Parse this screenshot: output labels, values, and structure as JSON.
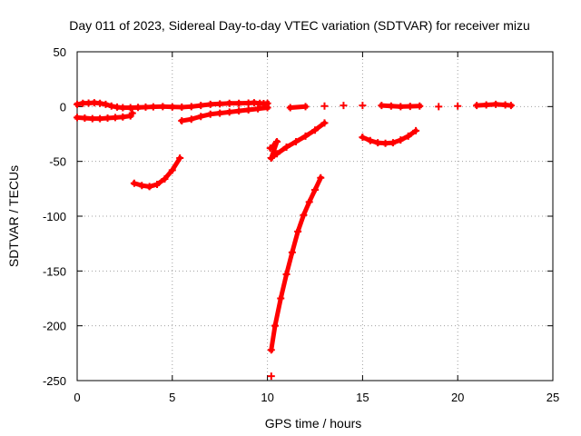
{
  "chart_data": {
    "type": "scatter",
    "title": "Day 011 of 2023, Sidereal Day-to-day VTEC variation (SDTVAR) for receiver mizu",
    "xlabel": "GPS time / hours",
    "ylabel": "SDTVAR / TECUs",
    "xlim": [
      0,
      25
    ],
    "ylim": [
      -250,
      50
    ],
    "xticks": [
      0,
      5,
      10,
      15,
      20,
      25
    ],
    "yticks": [
      -250,
      -200,
      -150,
      -100,
      -50,
      0,
      50
    ],
    "grid": true,
    "marker_color": "#ff0000",
    "series": [
      {
        "points": [
          [
            0.0,
            2.0
          ],
          [
            0.3,
            3.0
          ],
          [
            0.6,
            3.2
          ],
          [
            0.9,
            3.5
          ],
          [
            1.2,
            3.0
          ],
          [
            1.5,
            2.0
          ],
          [
            1.8,
            0.5
          ],
          [
            2.1,
            -0.5
          ],
          [
            2.4,
            -1.0
          ],
          [
            2.8,
            -1.0
          ],
          [
            3.2,
            -0.8
          ],
          [
            3.6,
            -0.5
          ],
          [
            4.0,
            -0.2
          ],
          [
            4.5,
            0.0
          ],
          [
            5.0,
            -0.3
          ],
          [
            5.5,
            -0.5
          ],
          [
            6.0,
            0.0
          ],
          [
            6.5,
            1.0
          ],
          [
            7.0,
            2.0
          ],
          [
            7.5,
            2.5
          ],
          [
            8.0,
            3.0
          ],
          [
            8.5,
            3.0
          ],
          [
            9.0,
            3.2
          ],
          [
            9.3,
            3.5
          ],
          [
            9.6,
            3.0
          ],
          [
            9.8,
            2.8
          ],
          [
            10.0,
            3.0
          ]
        ]
      },
      {
        "points": [
          [
            0.0,
            -10.0
          ],
          [
            0.4,
            -10.5
          ],
          [
            0.8,
            -11.0
          ],
          [
            1.2,
            -11.0
          ],
          [
            1.6,
            -10.5
          ],
          [
            2.0,
            -10.0
          ],
          [
            2.4,
            -9.5
          ],
          [
            2.8,
            -8.5
          ],
          [
            2.9,
            -6.0
          ],
          [
            5.5,
            -13.0
          ],
          [
            6.0,
            -11.5
          ],
          [
            6.5,
            -9.0
          ],
          [
            7.0,
            -7.0
          ],
          [
            7.5,
            -6.0
          ],
          [
            8.0,
            -5.0
          ],
          [
            8.5,
            -4.0
          ],
          [
            9.0,
            -3.0
          ],
          [
            9.5,
            -2.0
          ],
          [
            10.0,
            -1.0
          ]
        ]
      },
      {
        "points": [
          [
            3.0,
            -70.0
          ],
          [
            3.4,
            -72.0
          ],
          [
            3.8,
            -73.0
          ],
          [
            4.2,
            -71.0
          ],
          [
            4.6,
            -66.0
          ],
          [
            5.0,
            -58.0
          ],
          [
            5.4,
            -47.0
          ]
        ]
      },
      {
        "points": [
          [
            10.15,
            -38.0
          ],
          [
            10.3,
            -36.0
          ],
          [
            10.5,
            -32.0
          ],
          [
            10.2,
            -47.0
          ],
          [
            10.5,
            -43.0
          ],
          [
            11.0,
            -37.0
          ],
          [
            11.5,
            -32.0
          ],
          [
            12.0,
            -27.0
          ],
          [
            12.5,
            -21.5
          ],
          [
            13.0,
            -15.0
          ]
        ]
      },
      {
        "points": [
          [
            10.2,
            -222.0
          ],
          [
            10.4,
            -200.0
          ],
          [
            10.7,
            -175.0
          ],
          [
            11.0,
            -153.0
          ],
          [
            11.3,
            -133.0
          ],
          [
            11.6,
            -114.0
          ],
          [
            11.9,
            -99.0
          ],
          [
            12.2,
            -87.0
          ],
          [
            12.5,
            -76.0
          ],
          [
            12.8,
            -65.0
          ],
          [
            10.2,
            -246.0
          ]
        ]
      },
      {
        "points": [
          [
            11.2,
            -1.0
          ],
          [
            12.0,
            0.0
          ],
          [
            13.0,
            0.5
          ],
          [
            14.0,
            1.0
          ],
          [
            15.0,
            1.0
          ],
          [
            16.0,
            1.0
          ],
          [
            16.5,
            0.5
          ],
          [
            17.0,
            0.0
          ],
          [
            17.5,
            0.2
          ],
          [
            18.0,
            0.5
          ],
          [
            19.0,
            0.0
          ],
          [
            20.0,
            0.5
          ],
          [
            21.0,
            1.0
          ],
          [
            21.5,
            1.5
          ],
          [
            22.0,
            2.0
          ],
          [
            22.5,
            1.5
          ],
          [
            22.8,
            1.0
          ]
        ]
      },
      {
        "points": [
          [
            15.0,
            -28.0
          ],
          [
            15.4,
            -31.0
          ],
          [
            15.8,
            -33.0
          ],
          [
            16.2,
            -33.5
          ],
          [
            16.6,
            -33.0
          ],
          [
            17.0,
            -30.5
          ],
          [
            17.4,
            -27.0
          ],
          [
            17.8,
            -22.0
          ]
        ]
      }
    ]
  }
}
